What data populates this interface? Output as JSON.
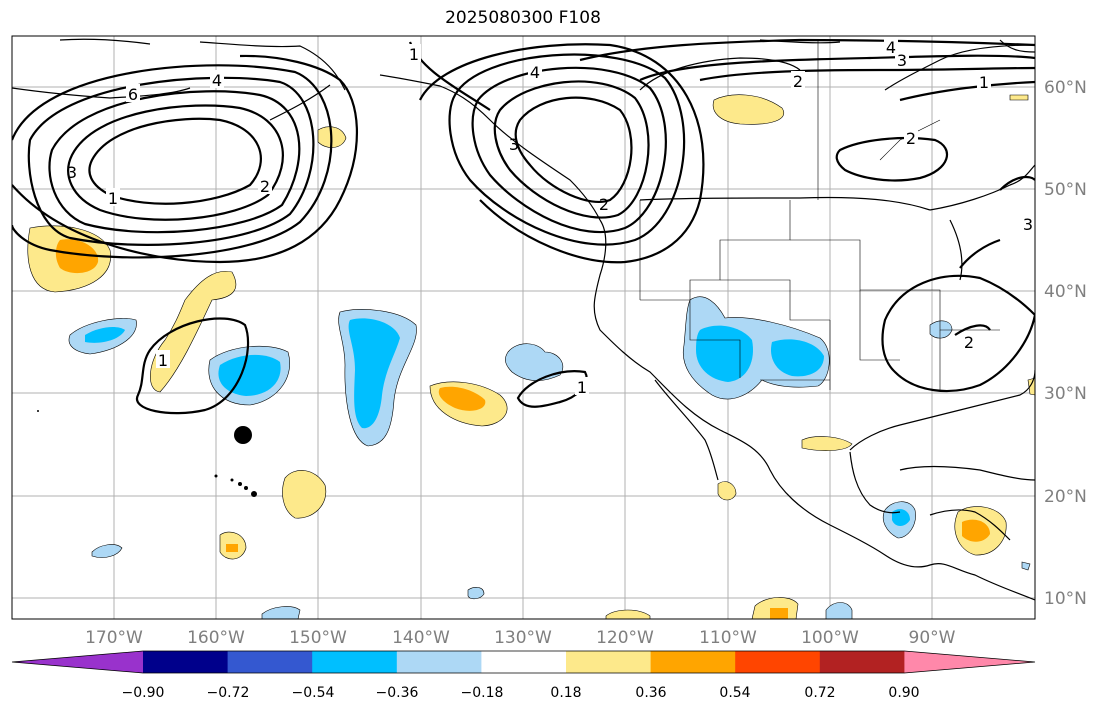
{
  "title": "2025080300 F108",
  "lon_labels": [
    "170°W",
    "160°W",
    "150°W",
    "140°W",
    "130°W",
    "120°W",
    "110°W",
    "100°W",
    "90°W"
  ],
  "lat_labels": [
    "60°N",
    "50°N",
    "40°N",
    "30°N",
    "20°N",
    "10°N"
  ],
  "contour_labels": [
    "1",
    "2",
    "3",
    "4",
    "6",
    "1",
    "2",
    "3",
    "4",
    "1",
    "2",
    "4",
    "3",
    "1",
    "2",
    "3",
    "1",
    "2"
  ],
  "colorbar": {
    "ticks": [
      "−0.90",
      "−0.72",
      "−0.54",
      "−0.36",
      "−0.18",
      "0.18",
      "0.36",
      "0.54",
      "0.72",
      "0.90"
    ],
    "colors": [
      "#9932cc",
      "#00008b",
      "#3458d0",
      "#00bfff",
      "#add8f5",
      "#ffffff",
      "#fde98b",
      "#ffa500",
      "#ff4500",
      "#b22222",
      "#ff88aa"
    ]
  }
}
